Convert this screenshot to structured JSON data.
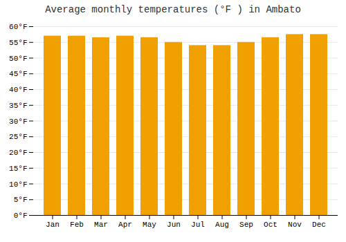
{
  "chart_data": {
    "type": "bar",
    "title": "Average monthly temperatures (°F ) in Ambato",
    "categories": [
      "Jan",
      "Feb",
      "Mar",
      "Apr",
      "May",
      "Jun",
      "Jul",
      "Aug",
      "Sep",
      "Oct",
      "Nov",
      "Dec"
    ],
    "values": [
      57,
      57,
      56.5,
      57,
      56.5,
      55,
      54,
      54,
      55,
      56.5,
      57.5,
      57.5
    ],
    "color": "#F0A000",
    "ylim": [
      0,
      60
    ],
    "yticks": [
      {
        "value": 0,
        "label": "0°F"
      },
      {
        "value": 5,
        "label": "5°F"
      },
      {
        "value": 10,
        "label": "10°F"
      },
      {
        "value": 15,
        "label": "15°F"
      },
      {
        "value": 20,
        "label": "20°F"
      },
      {
        "value": 25,
        "label": "25°F"
      },
      {
        "value": 30,
        "label": "30°F"
      },
      {
        "value": 35,
        "label": "35°F"
      },
      {
        "value": 40,
        "label": "40°F"
      },
      {
        "value": 45,
        "label": "45°F"
      },
      {
        "value": 50,
        "label": "50°F"
      },
      {
        "value": 55,
        "label": "55°F"
      },
      {
        "value": 60,
        "label": "60°F"
      }
    ],
    "grid": true
  }
}
